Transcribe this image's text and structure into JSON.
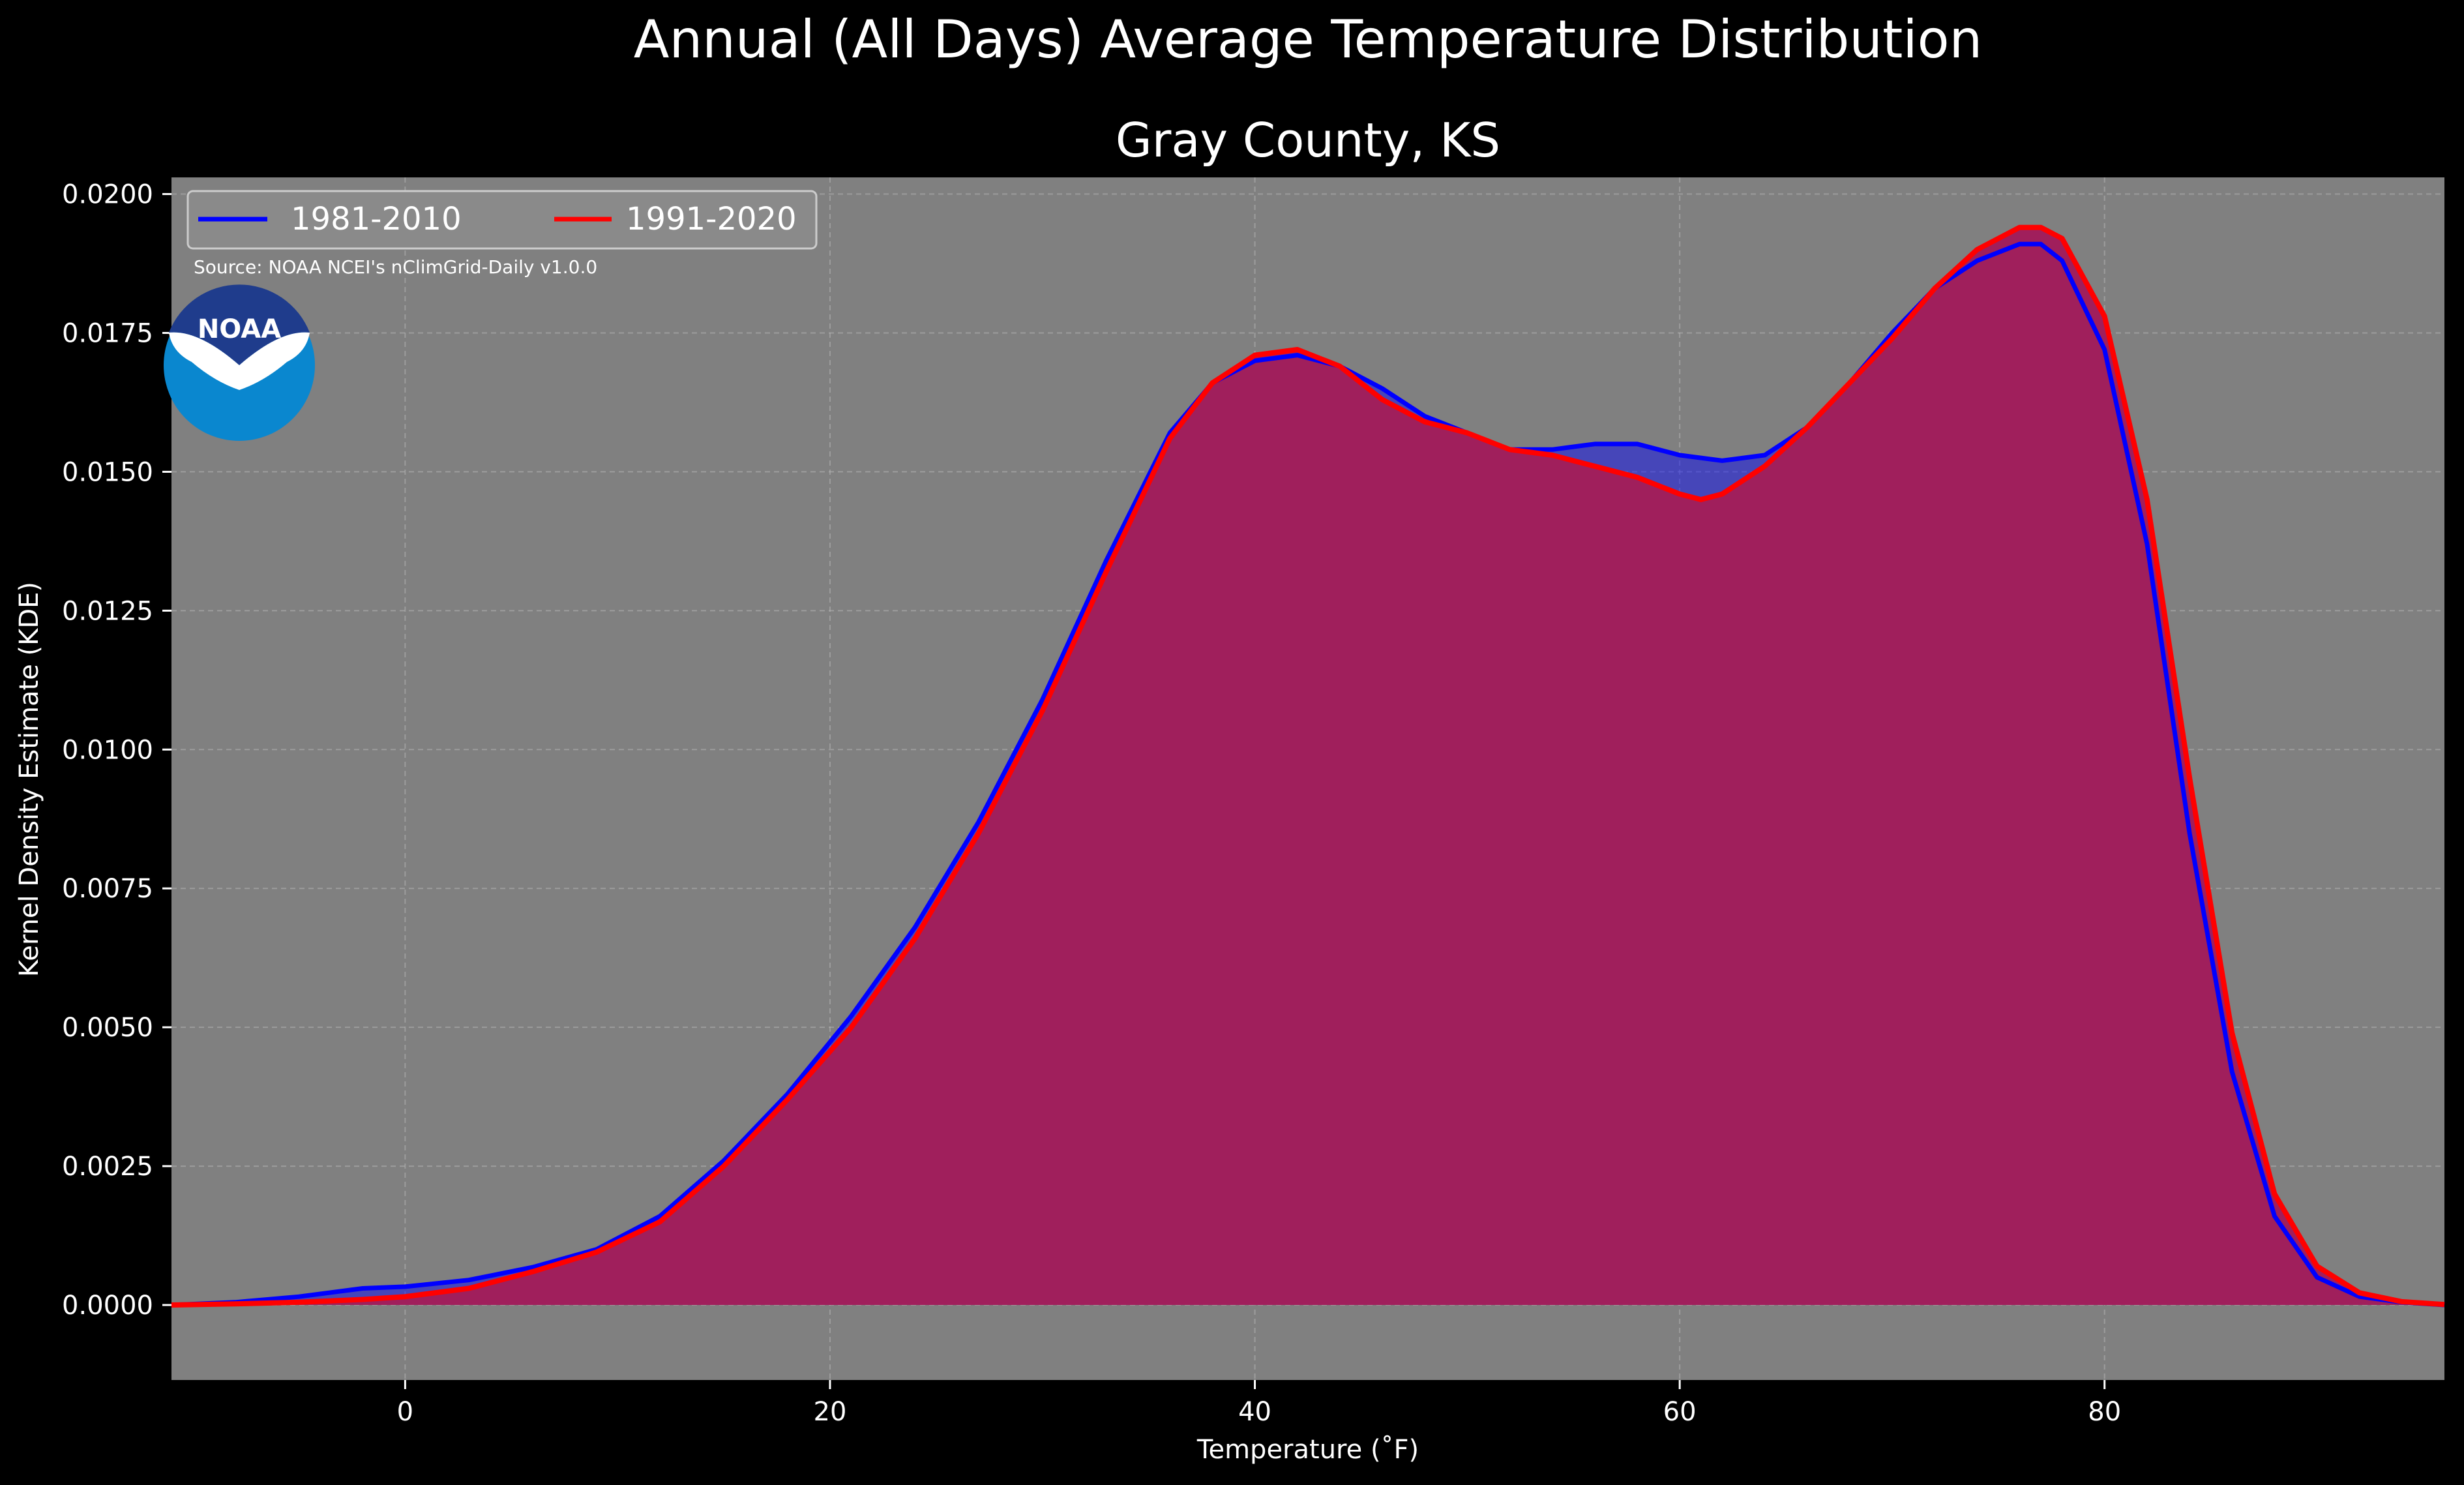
{
  "page": {
    "title": "Annual (All Days) Average Temperature Distribution",
    "subtitle": "Gray County, KS",
    "source": "Source: NOAA NCEI's nClimGrid-Daily v1.0.0",
    "logo_text": "NOAA"
  },
  "colors": {
    "background": "#000000",
    "plot_background": "#808080",
    "grid": "#b0b0b0",
    "text": "#ffffff",
    "series_1981": "#0000ff",
    "series_1991": "#ff0000",
    "fill_overlap": "#a01f5c",
    "fill_blue": "#4b3fc6",
    "logo_outer": "#0a87cf",
    "logo_inner": "#1f3c8c"
  },
  "chart_data": {
    "type": "area",
    "title": "Gray County, KS",
    "xlabel": "Temperature ($^\\circ$F)",
    "ylabel": "Kernel Density Estimate (KDE)",
    "xlim": [
      -11,
      96
    ],
    "ylim": [
      -0.00135,
      0.0203
    ],
    "x_ticks": [
      0,
      20,
      40,
      60,
      80
    ],
    "x_tick_labels": [
      "0",
      "20",
      "40",
      "60",
      "80"
    ],
    "y_ticks": [
      0.0,
      0.0025,
      0.005,
      0.0075,
      0.01,
      0.0125,
      0.015,
      0.0175,
      0.02
    ],
    "y_tick_labels": [
      "0.0000",
      "0.0025",
      "0.0050",
      "0.0075",
      "0.0100",
      "0.0125",
      "0.0150",
      "0.0175",
      "0.0200"
    ],
    "grid": true,
    "legend_position": "top-left",
    "series": [
      {
        "name": "1981-2010",
        "color": "#0000ff",
        "x": [
          -11,
          -8,
          -5,
          -2,
          0,
          3,
          6,
          9,
          12,
          15,
          18,
          21,
          24,
          27,
          30,
          33,
          36,
          38,
          40,
          42,
          44,
          46,
          48,
          50,
          52,
          54,
          56,
          57,
          58,
          60,
          62,
          64,
          66,
          68,
          70,
          72,
          74,
          76,
          77,
          78,
          80,
          82,
          84,
          86,
          88,
          90,
          92,
          94,
          96
        ],
        "y": [
          0.0,
          5e-05,
          0.00015,
          0.0003,
          0.00033,
          0.00045,
          0.00068,
          0.001,
          0.0016,
          0.0026,
          0.0038,
          0.0052,
          0.0068,
          0.0087,
          0.0109,
          0.0134,
          0.0157,
          0.0166,
          0.017,
          0.0171,
          0.0169,
          0.0165,
          0.016,
          0.0157,
          0.0154,
          0.0154,
          0.0155,
          0.0155,
          0.0155,
          0.0153,
          0.0152,
          0.0153,
          0.0158,
          0.0166,
          0.0175,
          0.0183,
          0.0188,
          0.0191,
          0.0191,
          0.0188,
          0.0172,
          0.0137,
          0.0085,
          0.0042,
          0.0016,
          0.0005,
          0.00015,
          5e-05,
          0.0
        ]
      },
      {
        "name": "1991-2020",
        "color": "#ff0000",
        "x": [
          -11,
          -8,
          -5,
          -2,
          0,
          3,
          6,
          9,
          12,
          15,
          18,
          21,
          24,
          27,
          30,
          33,
          36,
          38,
          40,
          42,
          44,
          46,
          48,
          50,
          52,
          54,
          56,
          58,
          60,
          61,
          62,
          64,
          66,
          68,
          70,
          72,
          74,
          76,
          77,
          78,
          80,
          82,
          84,
          86,
          88,
          90,
          92,
          94,
          96
        ],
        "y": [
          0.0,
          2e-05,
          5e-05,
          0.0001,
          0.00015,
          0.0003,
          0.0006,
          0.00095,
          0.0015,
          0.0025,
          0.0037,
          0.005,
          0.0066,
          0.0085,
          0.0107,
          0.0132,
          0.0156,
          0.0166,
          0.0171,
          0.0172,
          0.0169,
          0.0163,
          0.0159,
          0.0157,
          0.0154,
          0.0153,
          0.0151,
          0.0149,
          0.0146,
          0.0145,
          0.0146,
          0.0151,
          0.0158,
          0.0166,
          0.0174,
          0.0183,
          0.019,
          0.0194,
          0.0194,
          0.0192,
          0.0178,
          0.0145,
          0.0095,
          0.0049,
          0.002,
          0.0007,
          0.00022,
          6e-05,
          1e-05
        ]
      }
    ]
  }
}
